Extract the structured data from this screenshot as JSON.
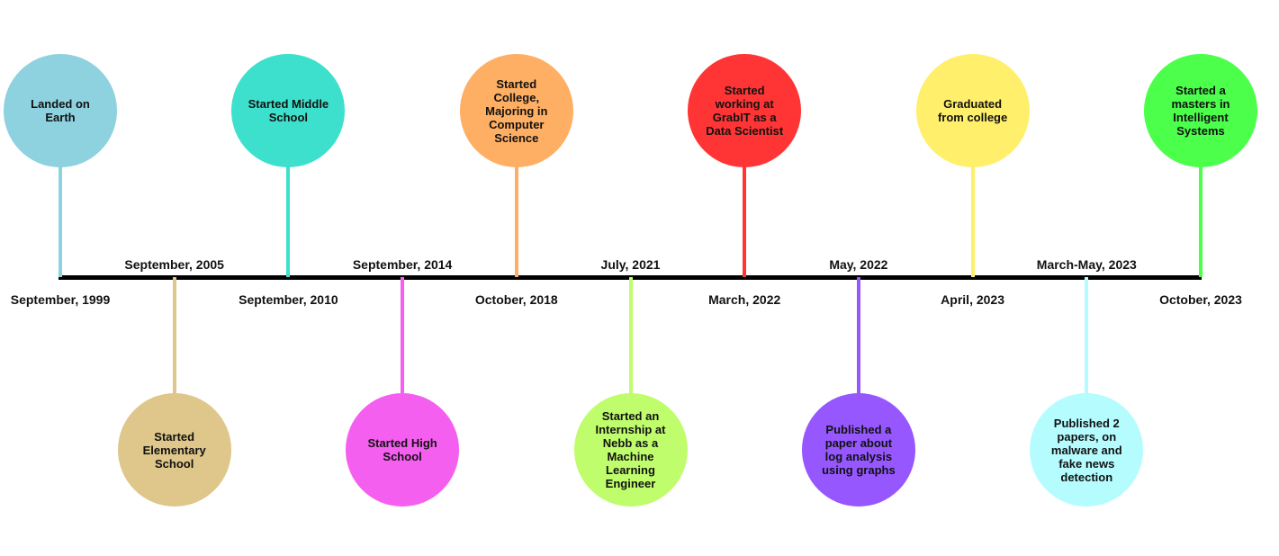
{
  "events": [
    {
      "date": "September, 1999",
      "text": "Landed on\nEarth",
      "color": "#8ED1DF",
      "position": "above"
    },
    {
      "date": "September, 2005",
      "text": "Started\nElementary\nSchool",
      "color": "#DFC68A",
      "position": "below"
    },
    {
      "date": "September, 2010",
      "text": "Started Middle\nSchool",
      "color": "#3DE0CC",
      "position": "above"
    },
    {
      "date": "September, 2014",
      "text": "Started High\nSchool",
      "color": "#F55FF0",
      "position": "below"
    },
    {
      "date": "October, 2018",
      "text": "Started\nCollege,\nMajoring in\nComputer\nScience",
      "color": "#FFAF63",
      "position": "above"
    },
    {
      "date": "July, 2021",
      "text": "Started an\nInternship at\nNebb as a\nMachine\nLearning\nEngineer",
      "color": "#BFFD6C",
      "position": "below"
    },
    {
      "date": "March, 2022",
      "text": "Started\nworking at\nGrabIT as a\nData Scientist",
      "color": "#FF3535",
      "position": "above"
    },
    {
      "date": "May, 2022",
      "text": "Published a\npaper about\nlog analysis\nusing graphs",
      "color": "#9657FF",
      "position": "below"
    },
    {
      "date": "April, 2023",
      "text": "Graduated\nfrom college",
      "color": "#FFEF6A",
      "position": "above"
    },
    {
      "date": "March-May, 2023",
      "text": "Published 2\npapers, on\nmalware and\nfake news\ndetection",
      "color": "#B5FCFF",
      "position": "below"
    },
    {
      "date": "October, 2023",
      "text": "Started a\nmasters in\nIntelligent\nSystems",
      "color": "#4BFF4B",
      "position": "above"
    }
  ]
}
